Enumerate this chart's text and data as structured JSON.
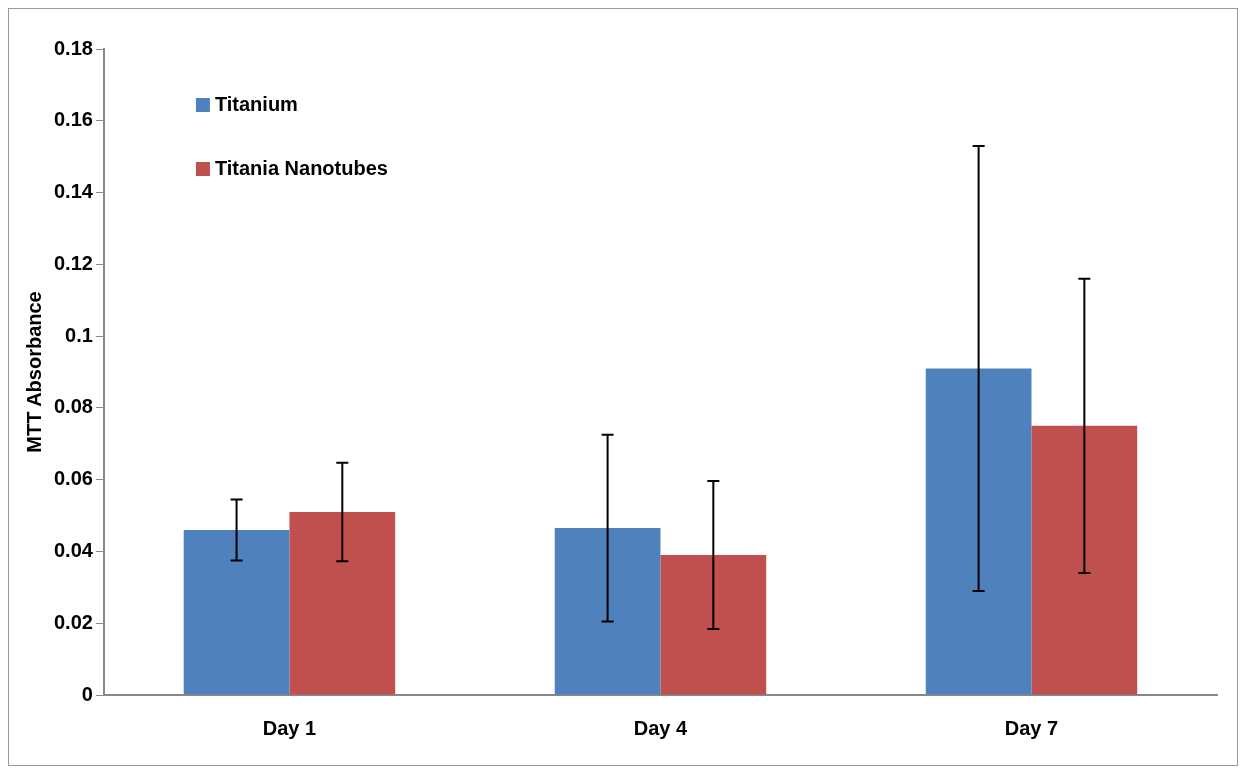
{
  "chart_data": {
    "type": "bar",
    "ylabel": "MTT Absorbance",
    "categories": [
      "Day 1",
      "Day 4",
      "Day 7"
    ],
    "series": [
      {
        "name": "Titanium",
        "color": "#4f81bd",
        "values": [
          0.046,
          0.0465,
          0.091
        ],
        "errors": [
          0.0085,
          0.026,
          0.062
        ]
      },
      {
        "name": "Titania Nanotubes",
        "color": "#c0504d",
        "values": [
          0.051,
          0.039,
          0.075
        ],
        "errors": [
          0.0137,
          0.0206,
          0.041
        ]
      }
    ],
    "ylim": [
      0,
      0.18
    ],
    "yticks": [
      0,
      0.02,
      0.04,
      0.06,
      0.08,
      0.1,
      0.12,
      0.14,
      0.16,
      0.18
    ],
    "grid": false,
    "legend": "top left"
  }
}
